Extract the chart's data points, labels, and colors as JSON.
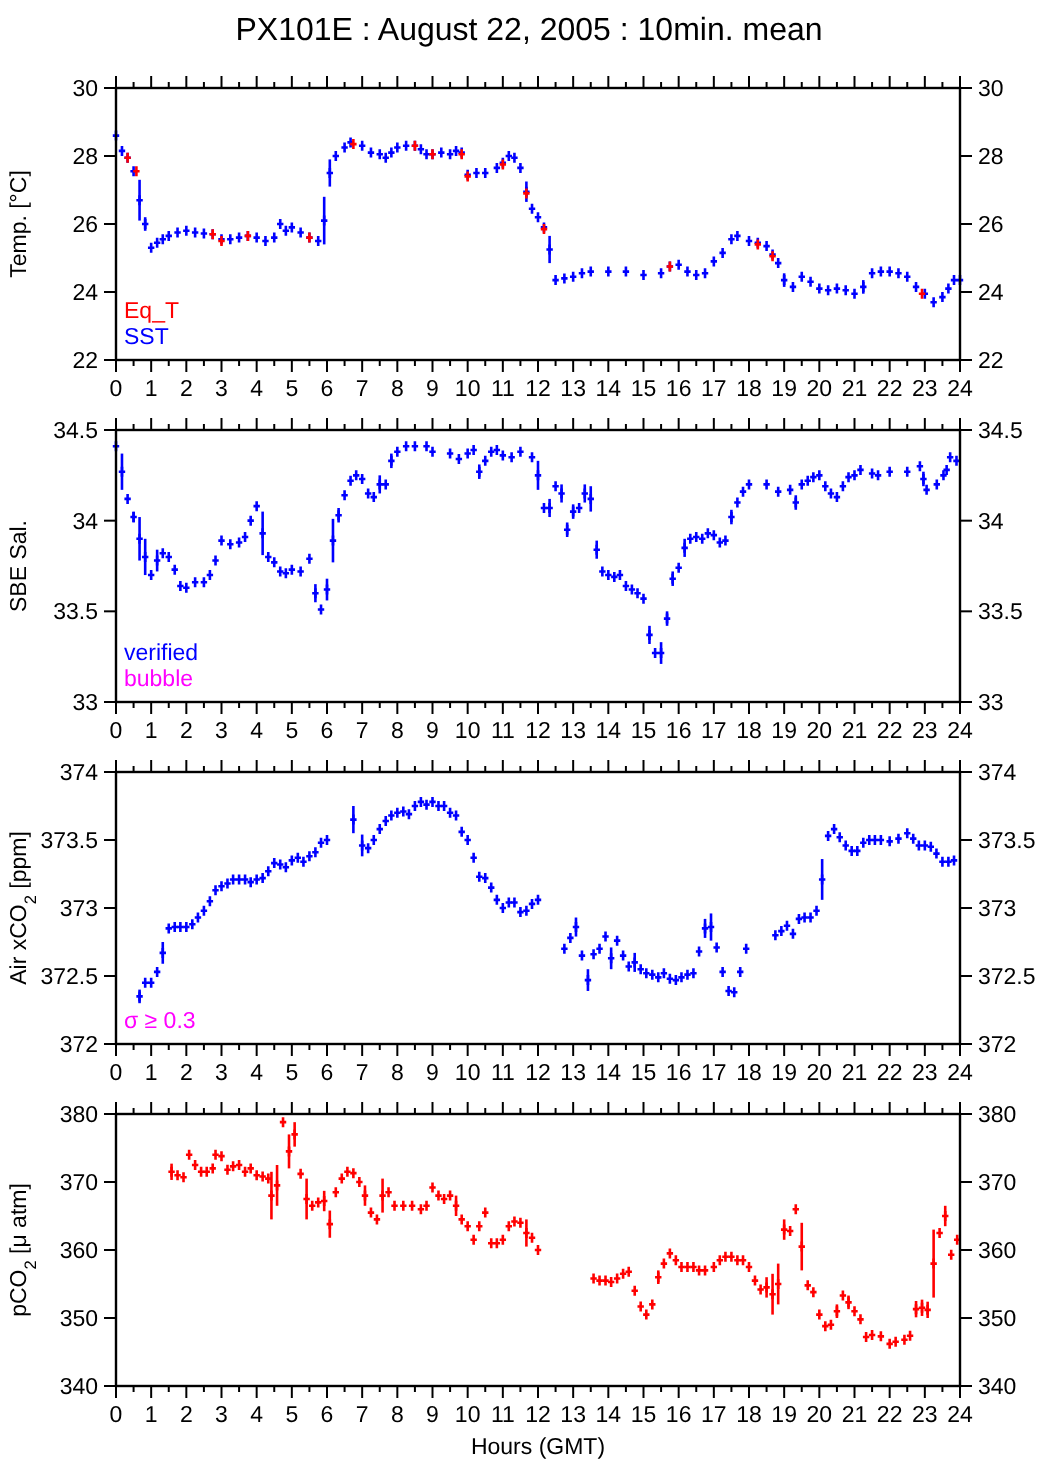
{
  "chart_data": [
    {
      "type": "scatter",
      "title": "PX101E : August 22, 2005 : 10min. mean",
      "ylabel": "Temp. [°C]",
      "marker": "cross",
      "legend": "bottom left",
      "xlim": [
        0,
        24
      ],
      "xticks": [
        0,
        {
          "value": 0.5,
          "label": null
        },
        1,
        {
          "value": 1.5,
          "label": null
        },
        2,
        {
          "value": 2.5,
          "label": null
        },
        3,
        {
          "value": 3.5,
          "label": null
        },
        4,
        {
          "value": 4.5,
          "label": null
        },
        5,
        {
          "value": 5.5,
          "label": null
        },
        6,
        {
          "value": 6.5,
          "label": null
        },
        7,
        {
          "value": 7.5,
          "label": null
        },
        8,
        {
          "value": 8.5,
          "label": null
        },
        9,
        {
          "value": 9.5,
          "label": null
        },
        10,
        {
          "value": 10.5,
          "label": null
        },
        11,
        {
          "value": 11.5,
          "label": null
        },
        12,
        {
          "value": 12.5,
          "label": null
        },
        13,
        {
          "value": 13.5,
          "label": null
        },
        14,
        {
          "value": 14.5,
          "label": null
        },
        15,
        {
          "value": 15.5,
          "label": null
        },
        16,
        {
          "value": 16.5,
          "label": null
        },
        17,
        {
          "value": 17.5,
          "label": null
        },
        18,
        {
          "value": 18.5,
          "label": null
        },
        19,
        {
          "value": 19.5,
          "label": null
        },
        20,
        {
          "value": 20.5,
          "label": null
        },
        21,
        {
          "value": 21.5,
          "label": null
        },
        22,
        {
          "value": 22.5,
          "label": null
        },
        23,
        {
          "value": 23.5,
          "label": null
        },
        24
      ],
      "ylim": [
        22,
        30
      ],
      "yticks": [
        22,
        24,
        26,
        28,
        30
      ],
      "y2lim": [
        22,
        30
      ],
      "y2ticks": [
        22,
        24,
        26,
        28,
        30
      ],
      "series": [
        {
          "name": "Eq_T",
          "color": "#ff0000",
          "x": [
            0.33,
            0.58,
            2.75,
            3,
            3.75,
            5.5,
            6.75,
            8.5,
            9,
            9.83,
            10,
            11,
            11.67,
            12.17,
            15.75,
            18.25,
            18.67,
            22.92
          ],
          "values": [
            27.95,
            27.55,
            25.7,
            25.5,
            25.65,
            25.6,
            28.35,
            28.3,
            28.05,
            28.05,
            27.4,
            27.75,
            26.9,
            25.85,
            24.75,
            25.4,
            25.05,
            23.95
          ]
        },
        {
          "name": "SST",
          "color": "#0000ff",
          "x": [
            0,
            0.17,
            0.33,
            0.5,
            0.67,
            0.83,
            1,
            1.17,
            1.33,
            1.5,
            1.75,
            2,
            2.25,
            2.5,
            2.75,
            3,
            3.25,
            3.5,
            3.75,
            4,
            4.25,
            4.5,
            4.67,
            4.83,
            5,
            5.25,
            5.5,
            5.75,
            5.92,
            6.08,
            6.25,
            6.5,
            6.67,
            7,
            7.25,
            7.5,
            7.67,
            7.83,
            8,
            8.25,
            8.5,
            8.67,
            8.83,
            9,
            9.25,
            9.5,
            9.67,
            9.83,
            10,
            10.25,
            10.5,
            10.83,
            11,
            11.17,
            11.33,
            11.5,
            11.67,
            11.83,
            12,
            12.17,
            12.33,
            12.5,
            12.75,
            13,
            13.25,
            13.5,
            14,
            14.5,
            15,
            15.5,
            15.75,
            16,
            16.25,
            16.5,
            16.75,
            17,
            17.25,
            17.5,
            17.67,
            18,
            18.25,
            18.5,
            18.67,
            18.83,
            19,
            19.25,
            19.5,
            19.75,
            20,
            20.25,
            20.5,
            20.75,
            21,
            21.25,
            21.5,
            21.75,
            22,
            22.25,
            22.5,
            22.75,
            23,
            23.25,
            23.5,
            23.67,
            23.83,
            24
          ],
          "values": [
            28.6,
            28.15,
            27.95,
            27.55,
            26.7,
            26.0,
            25.3,
            25.45,
            25.55,
            25.65,
            25.75,
            25.8,
            25.75,
            25.72,
            25.7,
            25.55,
            25.55,
            25.6,
            25.65,
            25.6,
            25.5,
            25.6,
            26.0,
            25.8,
            25.9,
            25.75,
            25.6,
            25.5,
            26.1,
            27.5,
            28.0,
            28.25,
            28.4,
            28.3,
            28.1,
            28.05,
            27.95,
            28.1,
            28.25,
            28.3,
            28.3,
            28.2,
            28.05,
            28.05,
            28.1,
            28.05,
            28.15,
            28.1,
            27.45,
            27.5,
            27.5,
            27.65,
            27.8,
            28.0,
            27.95,
            27.65,
            26.95,
            26.45,
            26.2,
            25.9,
            25.25,
            24.35,
            24.4,
            24.45,
            24.55,
            24.6,
            24.6,
            24.6,
            24.5,
            24.55,
            24.75,
            24.8,
            24.6,
            24.5,
            24.55,
            24.9,
            25.15,
            25.55,
            25.65,
            25.5,
            25.45,
            25.35,
            25.1,
            24.85,
            24.35,
            24.15,
            24.45,
            24.3,
            24.1,
            24.05,
            24.1,
            24.05,
            23.95,
            24.15,
            24.55,
            24.6,
            24.6,
            24.55,
            24.45,
            24.15,
            23.95,
            23.7,
            23.85,
            24.1,
            24.35,
            24.35
          ],
          "errors": [
            null,
            null,
            null,
            null,
            0.6,
            0.2,
            null,
            null,
            null,
            null,
            null,
            null,
            null,
            null,
            null,
            null,
            null,
            null,
            null,
            null,
            null,
            null,
            null,
            null,
            null,
            null,
            null,
            null,
            0.7,
            0.4,
            null,
            null,
            null,
            null,
            null,
            null,
            null,
            null,
            null,
            null,
            null,
            null,
            null,
            null,
            null,
            null,
            null,
            null,
            null,
            null,
            null,
            null,
            null,
            null,
            null,
            null,
            0.3,
            null,
            null,
            null,
            0.4,
            null,
            null,
            null,
            null,
            null,
            null,
            null,
            null,
            null,
            null,
            null,
            null,
            null,
            null,
            null,
            null,
            null,
            null,
            null,
            null,
            null,
            null,
            null,
            0.2,
            null,
            null,
            null,
            null,
            null,
            null,
            null,
            null,
            0.2,
            null,
            null,
            null,
            null,
            null,
            null,
            null,
            null,
            null,
            null,
            null,
            null
          ]
        }
      ]
    },
    {
      "type": "scatter",
      "ylabel": "SBE Sal.",
      "marker": "cross",
      "legend": "bottom left",
      "xlim": [
        0,
        24
      ],
      "xticks": [
        0,
        {
          "value": 0.5,
          "label": null
        },
        1,
        {
          "value": 1.5,
          "label": null
        },
        2,
        {
          "value": 2.5,
          "label": null
        },
        3,
        {
          "value": 3.5,
          "label": null
        },
        4,
        {
          "value": 4.5,
          "label": null
        },
        5,
        {
          "value": 5.5,
          "label": null
        },
        6,
        {
          "value": 6.5,
          "label": null
        },
        7,
        {
          "value": 7.5,
          "label": null
        },
        8,
        {
          "value": 8.5,
          "label": null
        },
        9,
        {
          "value": 9.5,
          "label": null
        },
        10,
        {
          "value": 10.5,
          "label": null
        },
        11,
        {
          "value": 11.5,
          "label": null
        },
        12,
        {
          "value": 12.5,
          "label": null
        },
        13,
        {
          "value": 13.5,
          "label": null
        },
        14,
        {
          "value": 14.5,
          "label": null
        },
        15,
        {
          "value": 15.5,
          "label": null
        },
        16,
        {
          "value": 16.5,
          "label": null
        },
        17,
        {
          "value": 17.5,
          "label": null
        },
        18,
        {
          "value": 18.5,
          "label": null
        },
        19,
        {
          "value": 19.5,
          "label": null
        },
        20,
        {
          "value": 20.5,
          "label": null
        },
        21,
        {
          "value": 21.5,
          "label": null
        },
        22,
        {
          "value": 22.5,
          "label": null
        },
        23,
        {
          "value": 23.5,
          "label": null
        },
        24
      ],
      "ylim": [
        33,
        34.5
      ],
      "yticks": [
        33,
        33.5,
        34,
        34.5
      ],
      "y2lim": [
        33,
        34.5
      ],
      "y2ticks": [
        33,
        33.5,
        34,
        34.5
      ],
      "series": [
        {
          "name": "verified",
          "color": "#0000ff",
          "x": [
            0,
            0.17,
            0.33,
            0.5,
            0.67,
            0.83,
            1,
            1.17,
            1.33,
            1.5,
            1.67,
            1.83,
            2,
            2.25,
            2.5,
            2.67,
            2.83,
            3,
            3.25,
            3.5,
            3.67,
            3.83,
            4,
            4.17,
            4.33,
            4.5,
            4.67,
            4.83,
            5,
            5.25,
            5.5,
            5.67,
            5.83,
            6,
            6.17,
            6.33,
            6.5,
            6.67,
            6.83,
            7,
            7.17,
            7.33,
            7.5,
            7.67,
            7.83,
            8,
            8.25,
            8.5,
            8.83,
            9,
            9.5,
            9.75,
            10,
            10.17,
            10.33,
            10.5,
            10.67,
            10.83,
            11,
            11.25,
            11.5,
            11.83,
            12,
            12.17,
            12.33,
            12.5,
            12.67,
            12.83,
            13,
            13.17,
            13.33,
            13.5,
            13.67,
            13.83,
            14,
            14.17,
            14.33,
            14.5,
            14.67,
            14.83,
            15,
            15.17,
            15.33,
            15.5,
            15.67,
            15.83,
            16,
            16.17,
            16.33,
            16.5,
            16.67,
            16.83,
            17,
            17.17,
            17.33,
            17.5,
            17.67,
            17.83,
            18,
            18.5,
            18.83,
            19.17,
            19.33,
            19.5,
            19.67,
            19.83,
            20,
            20.17,
            20.33,
            20.5,
            20.67,
            20.83,
            21,
            21.17,
            21.5,
            21.67,
            22,
            22.5,
            22.86,
            22.96,
            23.05,
            23.34,
            23.53,
            23.62,
            23.72,
            23.9
          ],
          "values": [
            34.41,
            34.27,
            34.12,
            34.02,
            33.9,
            33.8,
            33.7,
            33.78,
            33.82,
            33.8,
            33.73,
            33.64,
            33.63,
            33.66,
            33.66,
            33.7,
            33.78,
            33.89,
            33.87,
            33.88,
            33.91,
            34,
            34.08,
            33.93,
            33.8,
            33.77,
            33.72,
            33.71,
            33.73,
            33.72,
            33.79,
            33.6,
            33.51,
            33.62,
            33.89,
            34.03,
            34.14,
            34.22,
            34.25,
            34.23,
            34.15,
            34.13,
            34.2,
            34.2,
            34.33,
            34.38,
            34.41,
            34.41,
            34.41,
            34.38,
            34.37,
            34.34,
            34.37,
            34.39,
            34.27,
            34.33,
            34.38,
            34.39,
            34.36,
            34.35,
            34.38,
            34.35,
            34.25,
            34.07,
            34.07,
            34.19,
            34.15,
            33.95,
            34.05,
            34.07,
            34.15,
            34.12,
            33.84,
            33.72,
            33.7,
            33.69,
            33.7,
            33.64,
            33.62,
            33.6,
            33.57,
            33.37,
            33.27,
            33.27,
            33.46,
            33.68,
            33.74,
            33.85,
            33.9,
            33.91,
            33.9,
            33.93,
            33.92,
            33.88,
            33.89,
            34.02,
            34.1,
            34.16,
            34.2,
            34.2,
            34.16,
            34.17,
            34.1,
            34.2,
            34.22,
            34.24,
            34.25,
            34.19,
            34.15,
            34.13,
            34.19,
            34.24,
            34.25,
            34.28,
            34.26,
            34.25,
            34.27,
            34.27,
            34.3,
            34.23,
            34.17,
            34.2,
            34.25,
            34.28,
            34.35,
            34.33
          ],
          "errors": [
            null,
            0.1,
            null,
            0.03,
            0.12,
            0.1,
            null,
            0.06,
            null,
            null,
            null,
            null,
            null,
            null,
            null,
            null,
            null,
            null,
            null,
            null,
            null,
            null,
            null,
            0.12,
            null,
            null,
            null,
            null,
            null,
            null,
            null,
            0.05,
            null,
            0.06,
            0.12,
            0.04,
            null,
            null,
            null,
            null,
            null,
            null,
            0.05,
            null,
            0.04,
            null,
            null,
            null,
            null,
            null,
            null,
            null,
            null,
            null,
            0.04,
            null,
            null,
            null,
            null,
            null,
            null,
            null,
            0.08,
            null,
            0.05,
            null,
            0.05,
            0.04,
            0.04,
            null,
            0.05,
            0.07,
            0.05,
            null,
            null,
            null,
            null,
            null,
            null,
            null,
            null,
            0.05,
            null,
            0.06,
            0.04,
            0.04,
            null,
            0.05,
            null,
            null,
            null,
            null,
            null,
            null,
            null,
            0.04,
            null,
            null,
            null,
            null,
            null,
            null,
            0.04,
            null,
            null,
            null,
            null,
            null,
            null,
            null,
            null,
            null,
            null,
            null,
            null,
            null,
            null,
            null,
            null,
            0.04,
            null,
            null,
            null,
            null,
            null,
            null
          ]
        },
        {
          "name": "bubble",
          "color": "#ff00ff"
        }
      ]
    },
    {
      "type": "scatter",
      "ylabel": "Air xCO$_{2}$ [ppm]",
      "marker": "cross",
      "annotations": [
        "σ ≥ 0.3"
      ],
      "xlim": [
        0,
        24
      ],
      "xticks": [
        0,
        {
          "value": 0.5,
          "label": null
        },
        1,
        {
          "value": 1.5,
          "label": null
        },
        2,
        {
          "value": 2.5,
          "label": null
        },
        3,
        {
          "value": 3.5,
          "label": null
        },
        4,
        {
          "value": 4.5,
          "label": null
        },
        5,
        {
          "value": 5.5,
          "label": null
        },
        6,
        {
          "value": 6.5,
          "label": null
        },
        7,
        {
          "value": 7.5,
          "label": null
        },
        8,
        {
          "value": 8.5,
          "label": null
        },
        9,
        {
          "value": 9.5,
          "label": null
        },
        10,
        {
          "value": 10.5,
          "label": null
        },
        11,
        {
          "value": 11.5,
          "label": null
        },
        12,
        {
          "value": 12.5,
          "label": null
        },
        13,
        {
          "value": 13.5,
          "label": null
        },
        14,
        {
          "value": 14.5,
          "label": null
        },
        15,
        {
          "value": 15.5,
          "label": null
        },
        16,
        {
          "value": 16.5,
          "label": null
        },
        17,
        {
          "value": 17.5,
          "label": null
        },
        18,
        {
          "value": 18.5,
          "label": null
        },
        19,
        {
          "value": 19.5,
          "label": null
        },
        20,
        {
          "value": 20.5,
          "label": null
        },
        21,
        {
          "value": 21.5,
          "label": null
        },
        22,
        {
          "value": 22.5,
          "label": null
        },
        23,
        {
          "value": 23.5,
          "label": null
        },
        24
      ],
      "ylim": [
        372,
        374
      ],
      "yticks": [
        372,
        372.5,
        373,
        373.5,
        374
      ],
      "y2lim": [
        372,
        374
      ],
      "y2ticks": [
        372,
        372.5,
        373,
        373.5,
        374
      ],
      "series": [
        {
          "color": "#0000ff",
          "x": [
            0.67,
            0.83,
            1,
            1.17,
            1.33,
            1.5,
            1.67,
            1.83,
            2,
            2.17,
            2.33,
            2.5,
            2.67,
            2.83,
            3,
            3.17,
            3.33,
            3.5,
            3.67,
            3.83,
            4,
            4.17,
            4.33,
            4.5,
            4.67,
            4.83,
            5,
            5.17,
            5.33,
            5.5,
            5.67,
            5.83,
            6,
            6.75,
            7,
            7.17,
            7.33,
            7.5,
            7.67,
            7.83,
            8,
            8.17,
            8.33,
            8.5,
            8.67,
            8.83,
            9,
            9.17,
            9.33,
            9.5,
            9.67,
            9.83,
            10,
            10.17,
            10.33,
            10.5,
            10.67,
            10.83,
            11,
            11.17,
            11.33,
            11.5,
            11.67,
            11.83,
            12,
            12.75,
            12.92,
            13.08,
            13.25,
            13.42,
            13.58,
            13.75,
            13.92,
            14.08,
            14.25,
            14.42,
            14.58,
            14.75,
            14.92,
            15.08,
            15.25,
            15.42,
            15.58,
            15.75,
            15.92,
            16.08,
            16.25,
            16.42,
            16.58,
            16.75,
            16.92,
            17.08,
            17.25,
            17.42,
            17.58,
            17.75,
            17.92,
            18.75,
            18.92,
            19.08,
            19.25,
            19.42,
            19.58,
            19.75,
            19.92,
            20.08,
            20.25,
            20.42,
            20.58,
            20.75,
            20.92,
            21.08,
            21.25,
            21.42,
            21.58,
            21.75,
            22,
            22.25,
            22.5,
            22.67,
            22.83,
            23,
            23.17,
            23.33,
            23.5,
            23.67,
            23.83
          ],
          "values": [
            372.35,
            372.45,
            372.45,
            372.53,
            372.67,
            372.85,
            372.86,
            372.86,
            372.86,
            372.88,
            372.93,
            372.98,
            373.05,
            373.13,
            373.16,
            373.18,
            373.21,
            373.21,
            373.21,
            373.19,
            373.21,
            373.22,
            373.27,
            373.33,
            373.32,
            373.3,
            373.35,
            373.37,
            373.34,
            373.38,
            373.41,
            373.48,
            373.5,
            373.65,
            373.46,
            373.44,
            373.5,
            373.58,
            373.64,
            373.68,
            373.7,
            373.71,
            373.69,
            373.75,
            373.78,
            373.76,
            373.78,
            373.75,
            373.75,
            373.7,
            373.68,
            373.56,
            373.5,
            373.37,
            373.23,
            373.22,
            373.15,
            373.06,
            373,
            373.04,
            373.04,
            372.97,
            372.98,
            373.03,
            373.06,
            372.7,
            372.78,
            372.86,
            372.65,
            372.47,
            372.66,
            372.7,
            372.79,
            372.63,
            372.76,
            372.65,
            372.57,
            372.6,
            372.55,
            372.52,
            372.51,
            372.49,
            372.52,
            372.48,
            372.47,
            372.49,
            372.51,
            372.52,
            372.68,
            372.85,
            372.86,
            372.71,
            372.53,
            372.39,
            372.38,
            372.53,
            372.7,
            372.8,
            372.83,
            372.87,
            372.81,
            372.92,
            372.93,
            372.93,
            372.98,
            373.21,
            373.53,
            373.58,
            373.52,
            373.46,
            373.42,
            373.42,
            373.48,
            373.5,
            373.5,
            373.5,
            373.49,
            373.51,
            373.55,
            373.51,
            373.46,
            373.46,
            373.45,
            373.4,
            373.34,
            373.34,
            373.35
          ],
          "errors": [
            0.05,
            null,
            null,
            null,
            0.08,
            null,
            null,
            null,
            null,
            null,
            null,
            null,
            null,
            null,
            null,
            null,
            null,
            null,
            null,
            null,
            null,
            null,
            null,
            null,
            null,
            null,
            null,
            null,
            null,
            null,
            null,
            null,
            null,
            0.1,
            0.08,
            null,
            null,
            null,
            null,
            null,
            null,
            null,
            null,
            null,
            null,
            null,
            null,
            null,
            null,
            null,
            null,
            null,
            null,
            null,
            null,
            null,
            null,
            null,
            null,
            null,
            null,
            null,
            null,
            null,
            null,
            null,
            null,
            0.07,
            null,
            0.08,
            null,
            null,
            null,
            0.08,
            null,
            null,
            null,
            0.07,
            null,
            null,
            null,
            null,
            null,
            null,
            null,
            null,
            null,
            null,
            null,
            0.07,
            0.1,
            null,
            null,
            null,
            null,
            null,
            null,
            null,
            null,
            null,
            null,
            null,
            null,
            null,
            null,
            0.15,
            null,
            null,
            null,
            null,
            null,
            null,
            null,
            null,
            null,
            null,
            null,
            null,
            null,
            null,
            null,
            null,
            null,
            null,
            null,
            null,
            null
          ]
        }
      ]
    },
    {
      "type": "scatter",
      "ylabel": "pCO$_{2}$ [μ atm]",
      "xlabel": "Hours (GMT)",
      "marker": "cross",
      "xlim": [
        0,
        24
      ],
      "xticks": [
        0,
        {
          "value": 0.5,
          "label": null
        },
        1,
        {
          "value": 1.5,
          "label": null
        },
        2,
        {
          "value": 2.5,
          "label": null
        },
        3,
        {
          "value": 3.5,
          "label": null
        },
        4,
        {
          "value": 4.5,
          "label": null
        },
        5,
        {
          "value": 5.5,
          "label": null
        },
        6,
        {
          "value": 6.5,
          "label": null
        },
        7,
        {
          "value": 7.5,
          "label": null
        },
        8,
        {
          "value": 8.5,
          "label": null
        },
        9,
        {
          "value": 9.5,
          "label": null
        },
        10,
        {
          "value": 10.5,
          "label": null
        },
        11,
        {
          "value": 11.5,
          "label": null
        },
        12,
        {
          "value": 12.5,
          "label": null
        },
        13,
        {
          "value": 13.5,
          "label": null
        },
        14,
        {
          "value": 14.5,
          "label": null
        },
        15,
        {
          "value": 15.5,
          "label": null
        },
        16,
        {
          "value": 16.5,
          "label": null
        },
        17,
        {
          "value": 17.5,
          "label": null
        },
        18,
        {
          "value": 18.5,
          "label": null
        },
        19,
        {
          "value": 19.5,
          "label": null
        },
        20,
        {
          "value": 20.5,
          "label": null
        },
        21,
        {
          "value": 21.5,
          "label": null
        },
        22,
        {
          "value": 22.5,
          "label": null
        },
        23,
        {
          "value": 23.5,
          "label": null
        },
        24
      ],
      "ylim": [
        340,
        380
      ],
      "yticks": [
        340,
        350,
        360,
        370,
        380
      ],
      "y2lim": [
        340,
        380
      ],
      "y2ticks": [
        340,
        350,
        360,
        370,
        380
      ],
      "series": [
        {
          "color": "#ff0000",
          "x": [
            1.58,
            1.75,
            1.92,
            2.08,
            2.25,
            2.42,
            2.58,
            2.75,
            2.83,
            3,
            3.17,
            3.33,
            3.5,
            3.67,
            3.83,
            4,
            4.17,
            4.33,
            4.42,
            4.58,
            4.75,
            4.92,
            5.08,
            5.25,
            5.42,
            5.58,
            5.75,
            5.92,
            6.08,
            6.25,
            6.42,
            6.58,
            6.75,
            6.92,
            7.08,
            7.25,
            7.42,
            7.58,
            7.75,
            7.92,
            8.17,
            8.42,
            8.67,
            8.83,
            9,
            9.17,
            9.33,
            9.5,
            9.67,
            9.83,
            10,
            10.17,
            10.33,
            10.5,
            10.67,
            10.83,
            11,
            11.17,
            11.33,
            11.5,
            11.67,
            11.83,
            12,
            13.58,
            13.75,
            13.92,
            14.08,
            14.25,
            14.42,
            14.58,
            14.75,
            14.92,
            15.08,
            15.25,
            15.42,
            15.58,
            15.75,
            15.92,
            16.08,
            16.25,
            16.42,
            16.58,
            16.75,
            17,
            17.17,
            17.33,
            17.5,
            17.67,
            17.83,
            18,
            18.17,
            18.33,
            18.5,
            18.67,
            18.83,
            19,
            19.17,
            19.33,
            19.5,
            19.67,
            19.83,
            20,
            20.17,
            20.33,
            20.5,
            20.67,
            20.83,
            21,
            21.17,
            21.33,
            21.5,
            21.75,
            22,
            22.17,
            22.42,
            22.58,
            22.75,
            22.92,
            23.08,
            23.25,
            23.42,
            23.58,
            23.75,
            23.92
          ],
          "values": [
            371.5,
            371,
            370.7,
            374,
            372.5,
            371.5,
            371.5,
            372,
            374,
            373.8,
            371.8,
            372.3,
            372.5,
            371.5,
            372,
            371,
            370.8,
            370.5,
            368,
            369.5,
            378.8,
            374.5,
            377,
            371.2,
            367.5,
            366.5,
            367,
            367.2,
            363.8,
            368.5,
            370.5,
            371.5,
            371.3,
            370,
            368,
            365.5,
            364.5,
            368,
            368.5,
            366.5,
            366.5,
            366.5,
            366,
            366.5,
            369.2,
            368,
            367.5,
            368,
            366.5,
            364.5,
            363.5,
            361.5,
            363.5,
            365.5,
            361,
            361,
            361.5,
            363.5,
            364.2,
            364,
            362.5,
            361.8,
            360,
            355.8,
            355.5,
            355.5,
            355.3,
            355.8,
            356.5,
            356.8,
            354,
            351.7,
            350.5,
            352,
            356,
            358,
            359.5,
            358.5,
            357.5,
            357.5,
            357.5,
            357,
            357,
            357.5,
            358.5,
            359,
            359,
            358.5,
            358.5,
            357.5,
            355.5,
            354.2,
            354.5,
            353.5,
            355,
            363,
            362.8,
            366,
            360.5,
            354.8,
            353.8,
            350.5,
            348.8,
            349,
            351,
            353.3,
            352.3,
            351,
            349.8,
            347.2,
            347.5,
            347.3,
            346.2,
            346.5,
            346.8,
            347.4,
            351.3,
            351.5,
            351.2,
            358,
            362.5,
            365,
            359.3,
            361.5
          ],
          "errors": [
            1.2,
            null,
            null,
            null,
            null,
            null,
            null,
            null,
            null,
            null,
            null,
            null,
            null,
            null,
            null,
            null,
            null,
            null,
            3.5,
            3,
            null,
            2.5,
            1.8,
            null,
            3,
            null,
            null,
            1.5,
            2,
            null,
            null,
            null,
            null,
            null,
            1.5,
            null,
            null,
            2.5,
            null,
            null,
            null,
            null,
            null,
            null,
            null,
            null,
            null,
            null,
            1.5,
            null,
            null,
            null,
            null,
            null,
            null,
            null,
            null,
            null,
            null,
            null,
            2,
            null,
            null,
            null,
            null,
            null,
            null,
            null,
            null,
            null,
            null,
            null,
            null,
            null,
            1,
            null,
            null,
            null,
            null,
            null,
            null,
            null,
            null,
            null,
            null,
            null,
            null,
            null,
            null,
            null,
            null,
            null,
            1.5,
            3,
            3,
            1.5,
            null,
            null,
            3.5,
            null,
            null,
            null,
            null,
            null,
            1,
            null,
            1,
            null,
            null,
            null,
            null,
            null,
            null,
            null,
            null,
            null,
            1.2,
            1.2,
            1.2,
            5,
            null,
            1.5,
            null,
            null
          ]
        }
      ]
    }
  ]
}
